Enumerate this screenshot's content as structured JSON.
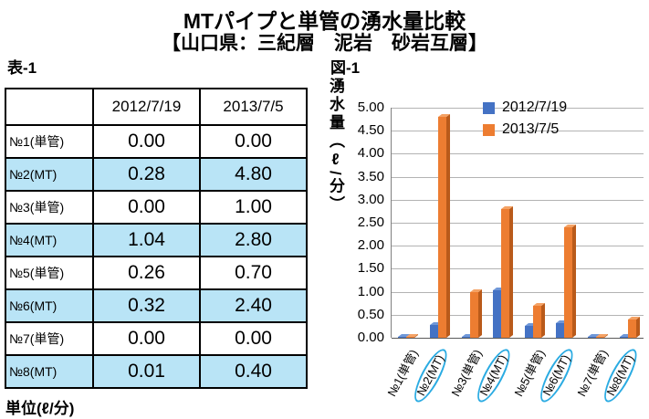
{
  "title": "MTパイプと単管の湧水量比較",
  "subtitle": "【山口県：三紀層　泥岩　砂岩互層】",
  "table": {
    "label": "表-1",
    "unit_note": "単位(ℓ/分)",
    "columns": [
      "",
      "2012/7/19",
      "2013/7/5"
    ],
    "rows": [
      {
        "label": "№1(単管)",
        "values": [
          "0.00",
          "0.00"
        ],
        "highlight": false
      },
      {
        "label": "№2(MT)",
        "values": [
          "0.28",
          "4.80"
        ],
        "highlight": true
      },
      {
        "label": "№3(単管)",
        "values": [
          "0.00",
          "1.00"
        ],
        "highlight": false
      },
      {
        "label": "№4(MT)",
        "values": [
          "1.04",
          "2.80"
        ],
        "highlight": true
      },
      {
        "label": "№5(単管)",
        "values": [
          "0.26",
          "0.70"
        ],
        "highlight": false
      },
      {
        "label": "№6(MT)",
        "values": [
          "0.32",
          "2.40"
        ],
        "highlight": true
      },
      {
        "label": "№7(単管)",
        "values": [
          "0.00",
          "0.00"
        ],
        "highlight": false
      },
      {
        "label": "№8(MT)",
        "values": [
          "0.01",
          "0.40"
        ],
        "highlight": true
      }
    ]
  },
  "chart": {
    "label": "図-1"
  },
  "chart_data": {
    "type": "bar",
    "title": "MTパイプと単管の湧水量比較",
    "categories": [
      "№1(単管)",
      "№2(MT)",
      "№3(単管)",
      "№4(MT)",
      "№5(単管)",
      "№6(MT)",
      "№7(単管)",
      "№8(MT)"
    ],
    "series": [
      {
        "name": "2012/7/19",
        "color": "#4472c4",
        "color_dark": "#2a4d8f",
        "color_light": "#6f97d8",
        "values": [
          0.0,
          0.28,
          0.0,
          1.04,
          0.26,
          0.32,
          0.0,
          0.01
        ]
      },
      {
        "name": "2013/7/5",
        "color": "#ed7d31",
        "color_dark": "#b95a1a",
        "color_light": "#f4a265",
        "values": [
          0.0,
          4.8,
          1.0,
          2.8,
          0.7,
          2.4,
          0.0,
          0.4
        ]
      }
    ],
    "xlabel": "",
    "ylabel": "湧水量（ℓ/分）",
    "ylim": [
      0,
      5.0
    ],
    "ytick_step": 0.5,
    "ytick_format_decimals": 2,
    "grid": true,
    "legend_position": "top-right",
    "circled_categories": [
      1,
      3,
      5,
      7
    ]
  },
  "colors": {
    "row_highlight": "#b9e4f6",
    "ellipse": "#2aabe2",
    "gridline": "#b3b3b3",
    "series_2012": "#4472c4",
    "series_2013": "#ed7d31"
  }
}
